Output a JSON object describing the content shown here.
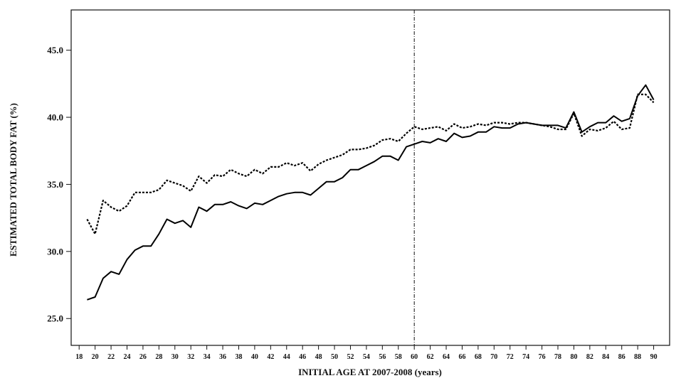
{
  "chart_data": {
    "type": "line",
    "xlabel": "INITIAL AGE AT 2007-2008 (years)",
    "ylabel": "ESTIMATED TOTAL BODY FAT (%)",
    "xlim": [
      17,
      92
    ],
    "ylim": [
      23,
      48
    ],
    "x_ticks": [
      18,
      20,
      22,
      24,
      26,
      28,
      30,
      32,
      34,
      36,
      38,
      40,
      42,
      44,
      46,
      48,
      50,
      52,
      54,
      56,
      58,
      60,
      62,
      64,
      66,
      68,
      70,
      72,
      74,
      76,
      78,
      80,
      82,
      84,
      86,
      88,
      90
    ],
    "x_tick_labels": [
      "18",
      "20",
      "22",
      "24",
      "26",
      "28",
      "30",
      "32",
      "34",
      "36",
      "38",
      "40",
      "42",
      "44",
      "46",
      "48",
      "50",
      "52",
      "54",
      "56",
      "58",
      "60",
      "62",
      "64",
      "66",
      "68",
      "70",
      "72",
      "74",
      "76",
      "78",
      "80",
      "82",
      "84",
      "86",
      "88",
      "90"
    ],
    "y_ticks": [
      25,
      30,
      35,
      40,
      45
    ],
    "y_tick_labels": [
      "25.0",
      "30.0",
      "35.0",
      "40.0",
      "45.0"
    ],
    "vertical_reference_line": {
      "x": 60,
      "style": "dash-dot"
    },
    "grid": false,
    "legend": "none",
    "x": [
      19,
      20,
      21,
      22,
      23,
      24,
      25,
      26,
      27,
      28,
      29,
      30,
      31,
      32,
      33,
      34,
      35,
      36,
      37,
      38,
      39,
      40,
      41,
      42,
      43,
      44,
      45,
      46,
      47,
      48,
      49,
      50,
      51,
      52,
      53,
      54,
      55,
      56,
      57,
      58,
      59,
      60,
      61,
      62,
      63,
      64,
      65,
      66,
      67,
      68,
      69,
      70,
      71,
      72,
      73,
      74,
      75,
      76,
      77,
      78,
      79,
      80,
      81,
      82,
      83,
      84,
      85,
      86,
      87,
      88,
      89,
      90
    ],
    "series": [
      {
        "style": "solid",
        "color": "#000000",
        "values": [
          26.4,
          26.6,
          28.0,
          28.5,
          28.3,
          29.4,
          30.1,
          30.4,
          30.4,
          31.3,
          32.4,
          32.1,
          32.3,
          31.8,
          33.3,
          33.0,
          33.5,
          33.5,
          33.7,
          33.4,
          33.2,
          33.6,
          33.5,
          33.8,
          34.1,
          34.3,
          34.4,
          34.4,
          34.2,
          34.7,
          35.2,
          35.2,
          35.5,
          36.1,
          36.1,
          36.4,
          36.7,
          37.1,
          37.1,
          36.8,
          37.8,
          38.0,
          38.2,
          38.1,
          38.4,
          38.2,
          38.8,
          38.5,
          38.6,
          38.9,
          38.9,
          39.3,
          39.2,
          39.2,
          39.5,
          39.6,
          39.5,
          39.4,
          39.4,
          39.4,
          39.2,
          40.4,
          38.9,
          39.3,
          39.6,
          39.6,
          40.1,
          39.7,
          39.9,
          41.6,
          42.4,
          41.3
        ]
      },
      {
        "style": "dotted",
        "color": "#000000",
        "values": [
          32.4,
          31.3,
          33.8,
          33.3,
          33.0,
          33.4,
          34.4,
          34.4,
          34.4,
          34.6,
          35.3,
          35.1,
          34.9,
          34.5,
          35.6,
          35.1,
          35.7,
          35.6,
          36.1,
          35.8,
          35.6,
          36.1,
          35.8,
          36.3,
          36.3,
          36.6,
          36.4,
          36.6,
          36.0,
          36.5,
          36.8,
          37.0,
          37.2,
          37.6,
          37.6,
          37.7,
          37.9,
          38.3,
          38.4,
          38.2,
          38.8,
          39.3,
          39.1,
          39.2,
          39.3,
          39.0,
          39.5,
          39.2,
          39.3,
          39.5,
          39.4,
          39.6,
          39.6,
          39.5,
          39.6,
          39.6,
          39.5,
          39.4,
          39.3,
          39.1,
          39.1,
          40.3,
          38.6,
          39.1,
          39.0,
          39.2,
          39.7,
          39.1,
          39.2,
          41.7,
          41.7,
          41.1
        ]
      }
    ]
  }
}
